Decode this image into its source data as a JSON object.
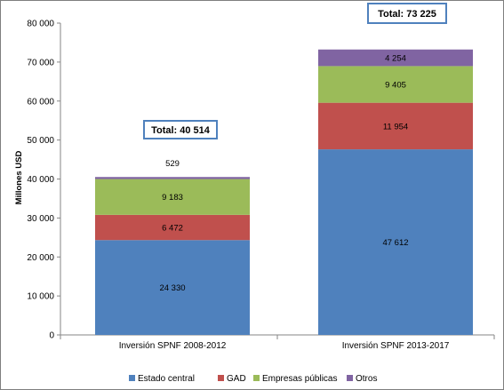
{
  "chart_data": {
    "type": "bar",
    "stacked": true,
    "categories": [
      "Inversión SPNF 2008-2012",
      "Inversión SPNF 2013-2017"
    ],
    "series": [
      {
        "name": "Estado central",
        "values": [
          24330,
          47612
        ],
        "labels": [
          "24 330",
          "47 612"
        ],
        "color": "#4f81bd"
      },
      {
        "name": "GAD",
        "values": [
          6472,
          11954
        ],
        "labels": [
          "6 472",
          "11 954"
        ],
        "color": "#c0504d"
      },
      {
        "name": "Empresas públicas",
        "values": [
          9183,
          9405
        ],
        "labels": [
          "9 183",
          "9 405"
        ],
        "color": "#9bbb59"
      },
      {
        "name": "Otros",
        "values": [
          529,
          4254
        ],
        "labels": [
          "529",
          "4 254"
        ],
        "color": "#8064a2"
      }
    ],
    "totals": [
      "Total: 40 514",
      "Total: 73 225"
    ],
    "total_box_color": "#4f81bd",
    "ylabel": "Millones USD",
    "xlabel": "",
    "title": "",
    "ylim": [
      0,
      80000
    ],
    "yticks": [
      0,
      10000,
      20000,
      30000,
      40000,
      50000,
      60000,
      70000,
      80000
    ],
    "ytick_labels": [
      "0",
      "10 000",
      "20 000",
      "30 000",
      "40 000",
      "50 000",
      "60 000",
      "70 000",
      "80 000"
    ],
    "grid": false,
    "legend_position": "bottom"
  }
}
